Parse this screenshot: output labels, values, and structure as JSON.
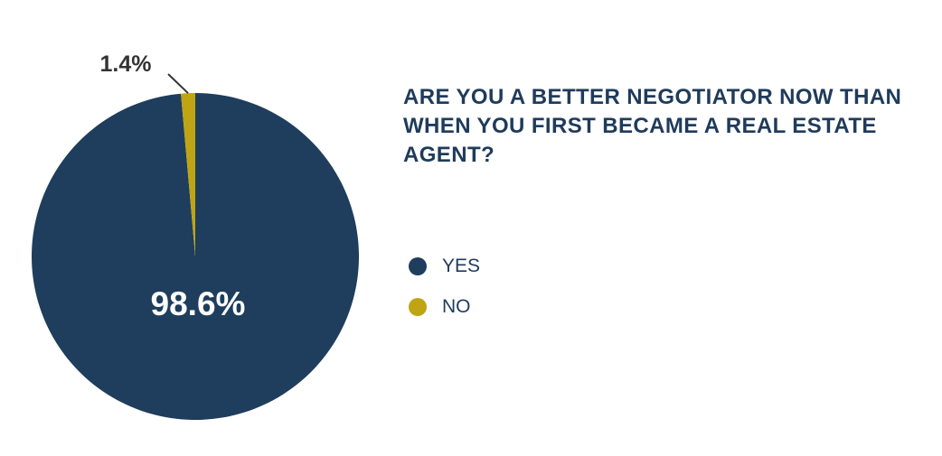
{
  "colors": {
    "yes": "#1f3d5c",
    "no": "#bfa414",
    "title": "#1f3b5b",
    "leader": "#333333",
    "outside_label": "#333333",
    "inside_label": "#ffffff"
  },
  "chart_data": {
    "type": "pie",
    "title": "ARE YOU A BETTER NEGOTIATOR NOW THAN WHEN YOU FIRST BECAME A REAL ESTATE AGENT?",
    "slices": [
      {
        "label": "YES",
        "value": 98.6,
        "data_label": "98.6%"
      },
      {
        "label": "NO",
        "value": 1.4,
        "data_label": "1.4%"
      }
    ],
    "legend_position": "right"
  }
}
